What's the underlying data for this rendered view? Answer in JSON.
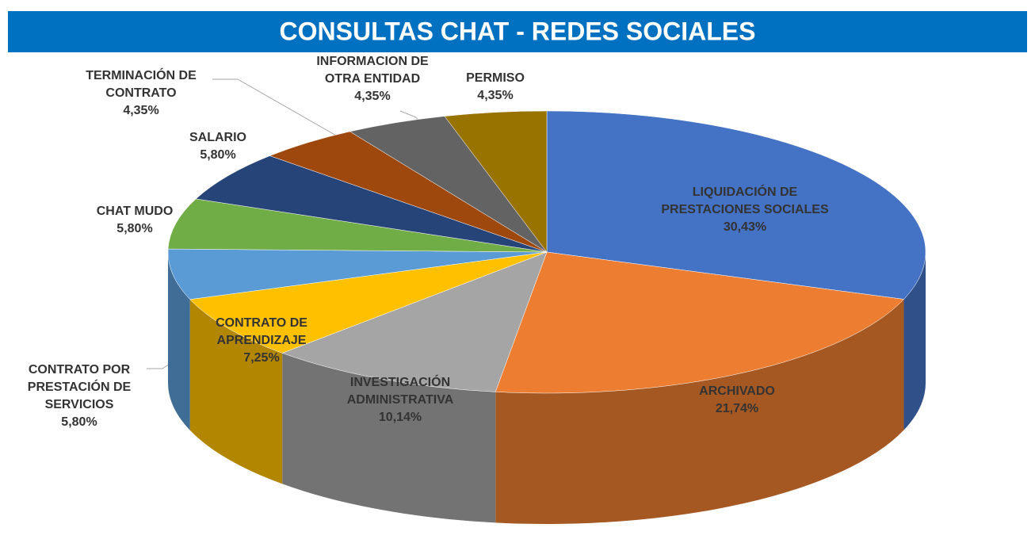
{
  "chart_data": {
    "type": "pie3d",
    "title": "CONSULTAS CHAT - REDES SOCIALES",
    "categories": [
      "LIQUIDACIÓN DE\nPRESTACIONES SOCIALES",
      "ARCHIVADO",
      "INVESTIGACIÓN\nADMINISTRATIVA",
      "CONTRATO DE\nAPRENDIZAJE",
      "CONTRATO POR\nPRESTACIÓN DE\nSERVICIOS",
      "CHAT MUDO",
      "SALARIO",
      "TERMINACIÓN DE\nCONTRATO",
      "INFORMACION DE\nOTRA ENTIDAD",
      "PERMISO"
    ],
    "values": [
      30.43,
      21.74,
      10.14,
      7.25,
      5.8,
      5.8,
      5.8,
      4.35,
      4.35,
      4.35
    ],
    "value_labels": [
      "30,43%",
      "21,74%",
      "10,14%",
      "7,25%",
      "5,80%",
      "5,80%",
      "5,80%",
      "4,35%",
      "4,35%",
      "4,35%"
    ],
    "colors": [
      "#4472c4",
      "#ed7d31",
      "#a5a5a5",
      "#ffc000",
      "#5b9bd5",
      "#70ad47",
      "#264478",
      "#9e480e",
      "#636363",
      "#997300"
    ]
  }
}
